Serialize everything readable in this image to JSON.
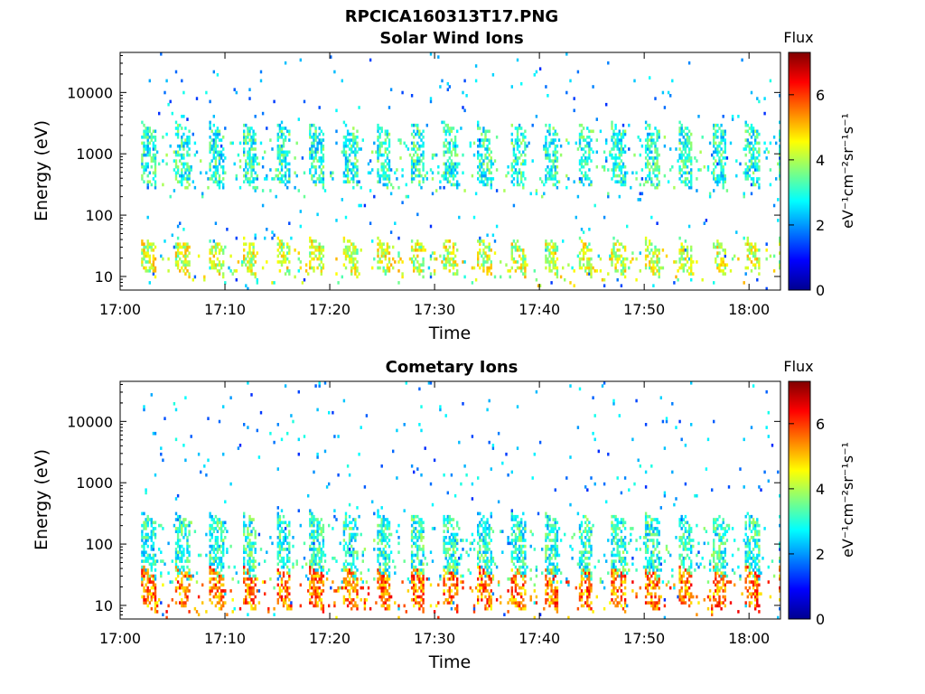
{
  "figure_title": "RPCICA160313T17.PNG",
  "chart_data": [
    {
      "type": "heatmap",
      "title": "Solar Wind Ions",
      "xlabel": "Time",
      "ylabel": "Energy (eV)",
      "xlim": [
        "17:00",
        "18:03"
      ],
      "ylim": [
        6,
        45000
      ],
      "yscale": "log",
      "x_ticks": [
        "17:00",
        "17:10",
        "17:20",
        "17:30",
        "17:40",
        "17:50",
        "18:00"
      ],
      "y_ticks": [
        "10",
        "100",
        "1000",
        "10000"
      ],
      "data_start": "17:02",
      "data_end": "18:03",
      "scan_period_min": 3.2,
      "colorbar": {
        "label": "Flux",
        "unit_label": "eV⁻¹cm⁻²sr⁻¹s⁻¹",
        "range": [
          0,
          7.3
        ],
        "ticks": [
          "0",
          "2",
          "4",
          "6"
        ],
        "colormap": "jet"
      },
      "populations": [
        {
          "energy_low": 400,
          "energy_high": 3000,
          "flux": 3.0
        },
        {
          "energy_low": 15,
          "energy_high": 40,
          "flux": 4.2
        }
      ]
    },
    {
      "type": "heatmap",
      "title": "Cometary Ions",
      "xlabel": "Time",
      "ylabel": "Energy (eV)",
      "xlim": [
        "17:00",
        "18:03"
      ],
      "ylim": [
        6,
        45000
      ],
      "yscale": "log",
      "x_ticks": [
        "17:00",
        "17:10",
        "17:20",
        "17:30",
        "17:40",
        "17:50",
        "18:00"
      ],
      "y_ticks": [
        "10",
        "100",
        "1000",
        "10000"
      ],
      "data_start": "17:02",
      "data_end": "18:03",
      "scan_period_min": 3.2,
      "colorbar": {
        "label": "Flux",
        "unit_label": "eV⁻¹cm⁻²sr⁻¹s⁻¹",
        "range": [
          0,
          7.3
        ],
        "ticks": [
          "0",
          "2",
          "4",
          "6"
        ],
        "colormap": "jet"
      },
      "populations": [
        {
          "energy_low": 40,
          "energy_high": 300,
          "flux": 3.0
        },
        {
          "energy_low": 12,
          "energy_high": 40,
          "flux": 5.5
        }
      ]
    }
  ]
}
